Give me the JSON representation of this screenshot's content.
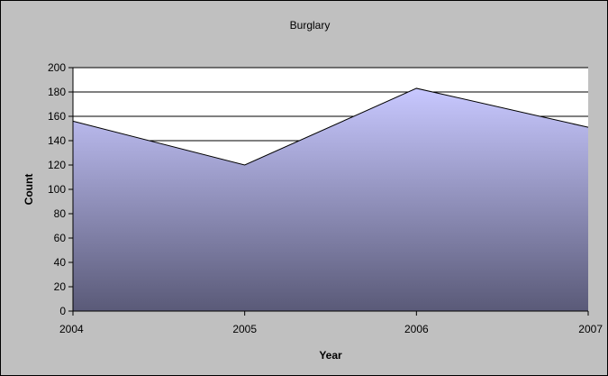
{
  "chart_data": {
    "type": "area",
    "title": "Burglary",
    "xlabel": "Year",
    "ylabel": "Count",
    "x": [
      "2004",
      "2005",
      "2006",
      "2007"
    ],
    "series": [
      {
        "values": [
          156,
          120,
          183,
          151
        ]
      }
    ],
    "ylim": [
      0,
      200
    ],
    "yticks": [
      "0",
      "20",
      "40",
      "60",
      "80",
      "100",
      "120",
      "140",
      "160",
      "180",
      "200"
    ],
    "grid": true,
    "legend": "none",
    "colors": {
      "background": "#c0c0c0",
      "plot_area": "#ffffff",
      "fill_top": "#c8c8ff",
      "fill_bottom": "#5a5a78",
      "line": "#000000"
    }
  }
}
